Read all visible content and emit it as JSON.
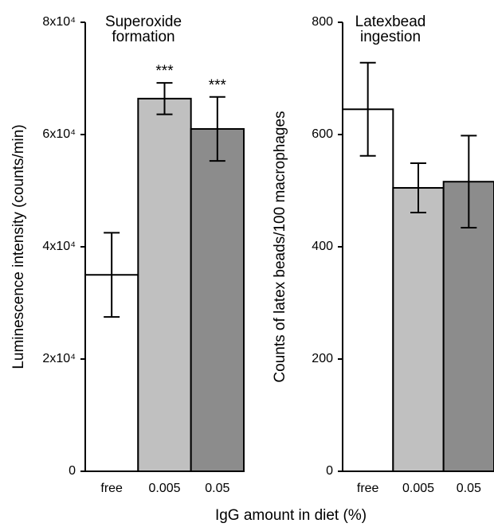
{
  "xlabel": "IgG amount in diet (%)",
  "chart_data": [
    {
      "type": "bar",
      "title": [
        "Superoxide",
        "formation"
      ],
      "ylabel": "Luminescence intensity (counts/min)",
      "categories": [
        "free",
        "0.005",
        "0.05"
      ],
      "values": [
        35000,
        66400,
        61000
      ],
      "errors": [
        7500,
        2800,
        5700
      ],
      "colors": [
        "#ffffff",
        "#c0c0c0",
        "#8c8c8c"
      ],
      "annotations": [
        {
          "text": "***",
          "x": "0.005"
        },
        {
          "text": "***",
          "x": "0.05"
        }
      ],
      "ylim": [
        0,
        80000
      ],
      "yticks": [
        0,
        {
          "value": 20000,
          "label": "2x10⁴"
        },
        {
          "value": 40000,
          "label": "4x10⁴"
        },
        {
          "value": 60000,
          "label": "6x10⁴"
        },
        {
          "value": 80000,
          "label": "8x10⁴"
        }
      ]
    },
    {
      "type": "bar",
      "title": [
        "Latexbead",
        "ingestion"
      ],
      "ylabel": "Counts of latex beads/100 macrophages",
      "categories": [
        "free",
        "0.005",
        "0.05"
      ],
      "values": [
        645,
        505,
        516
      ],
      "errors": [
        83,
        44,
        82
      ],
      "colors": [
        "#ffffff",
        "#c0c0c0",
        "#8c8c8c"
      ],
      "ylim": [
        0,
        800
      ],
      "yticks": [
        0,
        200,
        400,
        600,
        800
      ]
    }
  ]
}
